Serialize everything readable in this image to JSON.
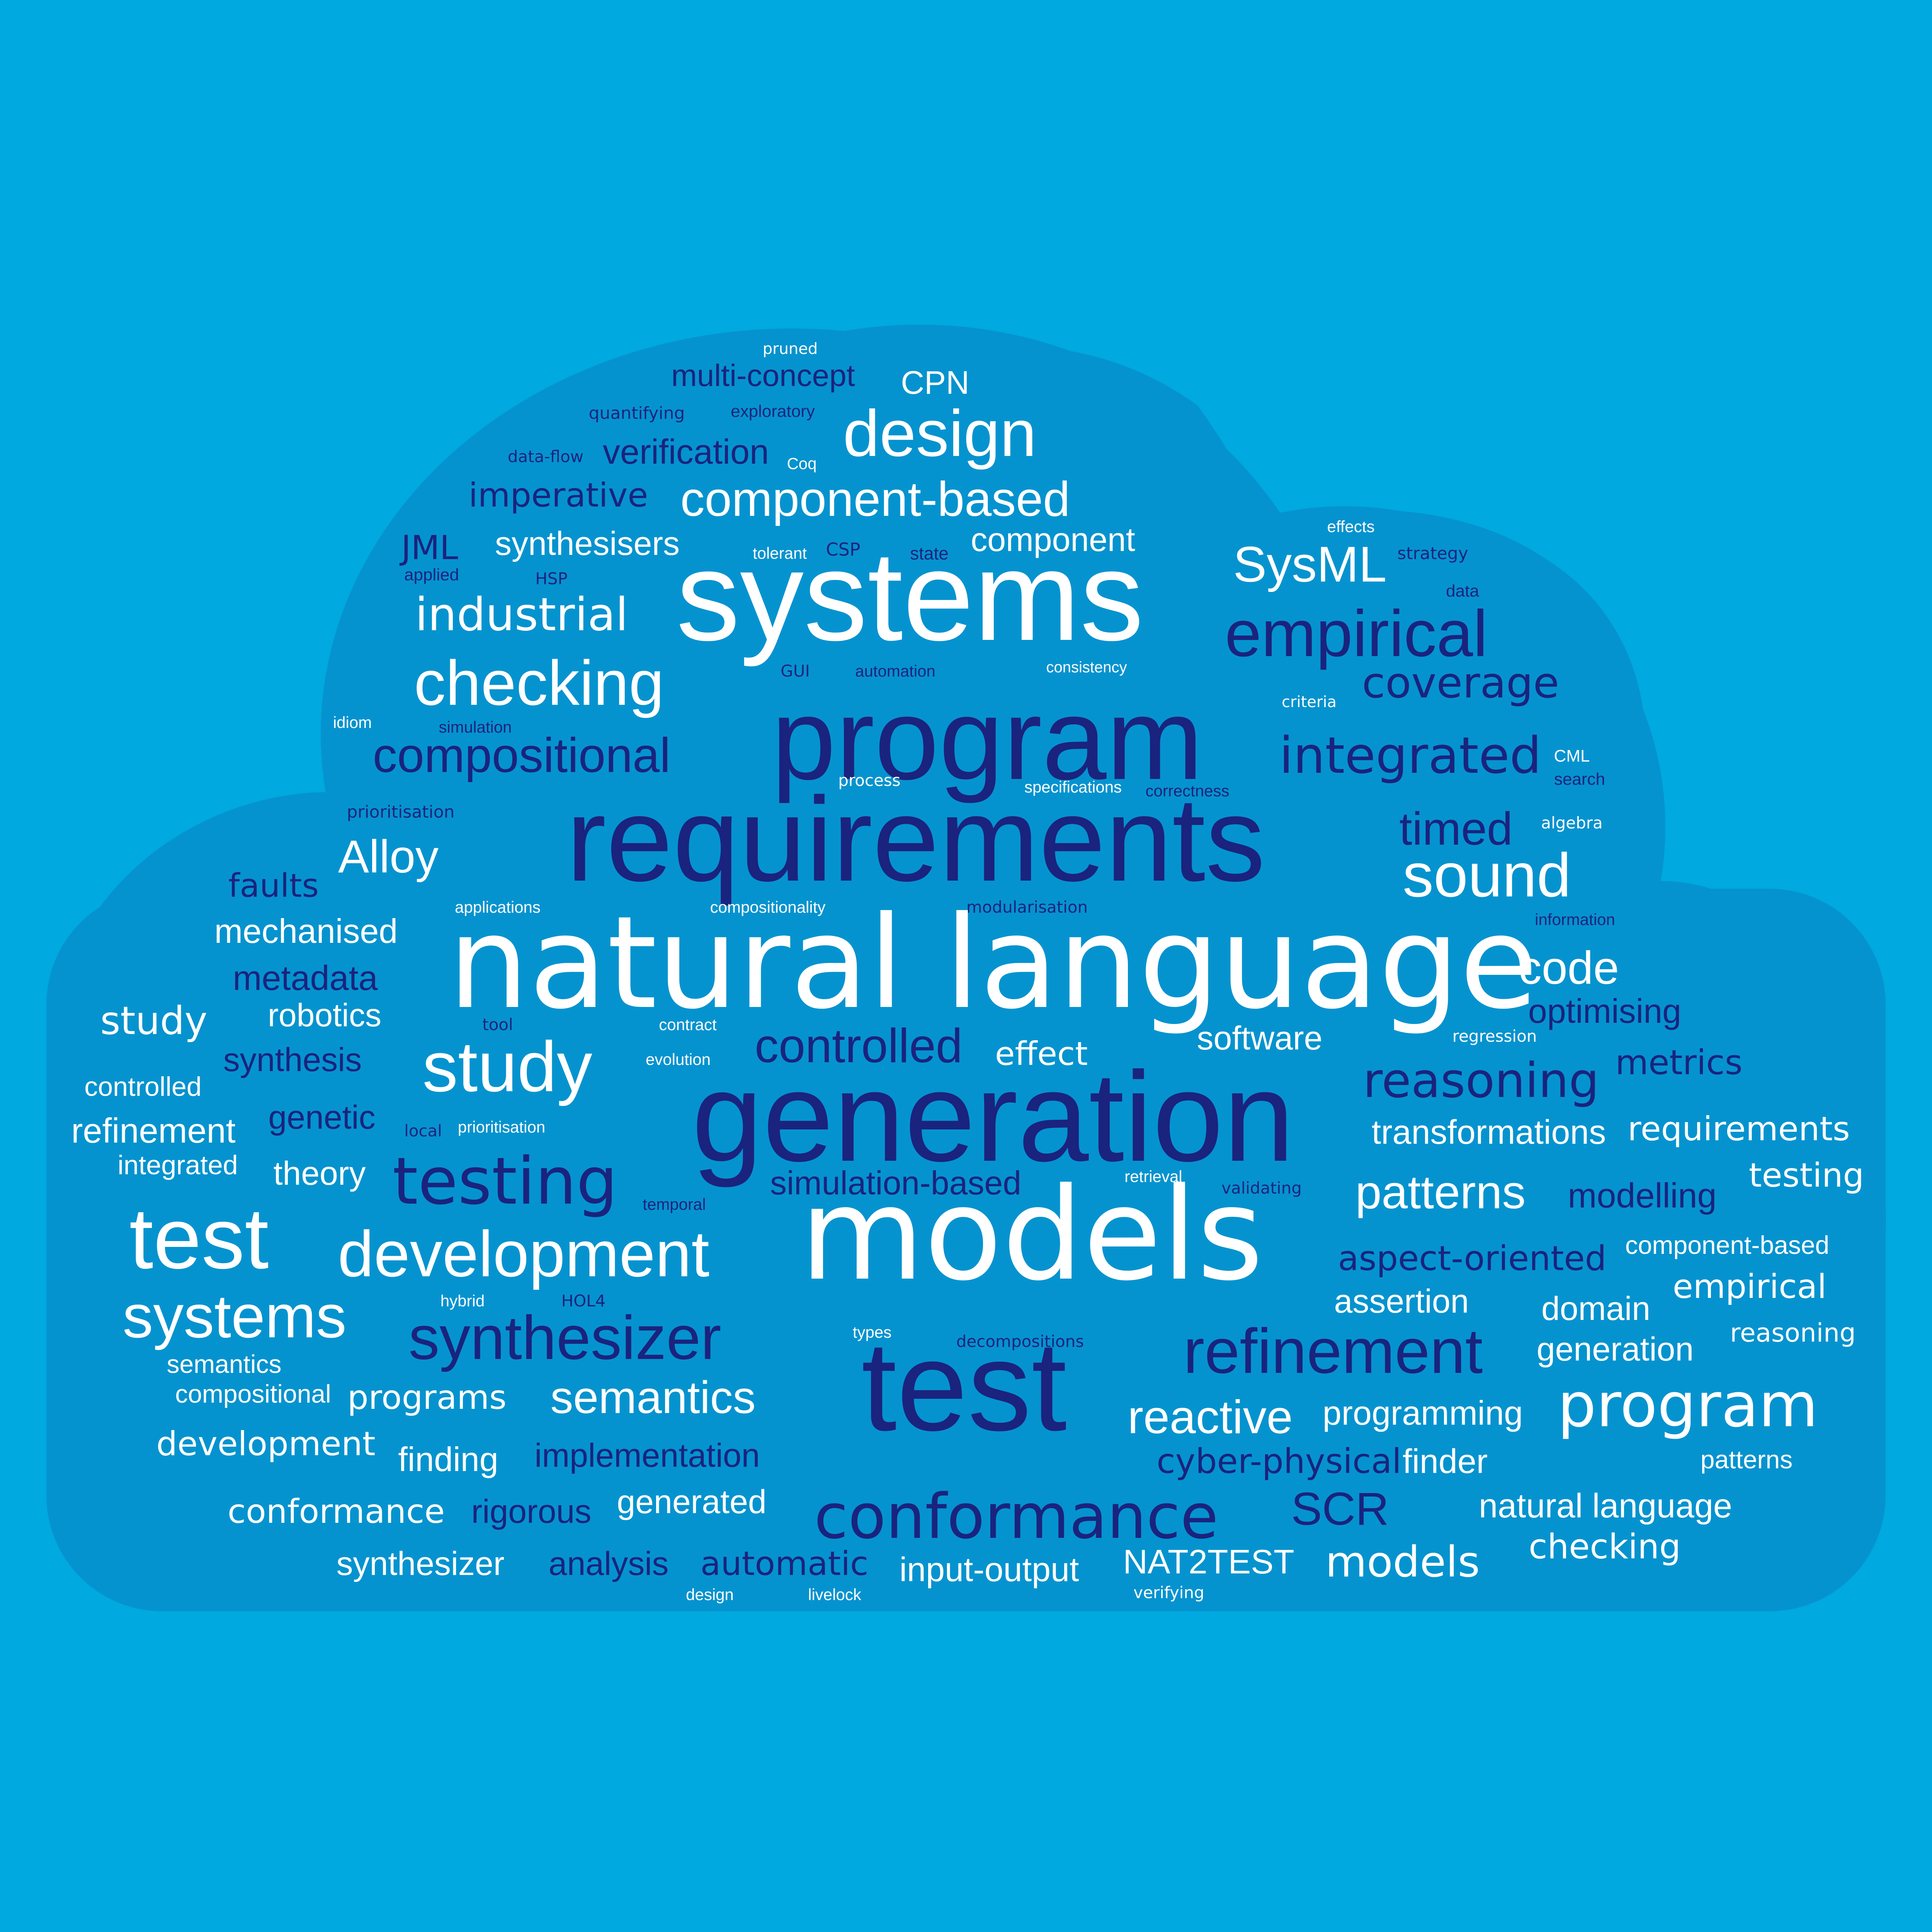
{
  "colors": {
    "background": "#00a9e0",
    "cloud": "#0593cf",
    "white": "#ffffff",
    "navy": "#1a237e"
  },
  "words": [
    {
      "text": "pruned",
      "tone": "white"
    },
    {
      "text": "multi-concept",
      "tone": "navy"
    },
    {
      "text": "CPN",
      "tone": "white"
    },
    {
      "text": "quantifying",
      "tone": "navy"
    },
    {
      "text": "exploratory",
      "tone": "navy"
    },
    {
      "text": "design",
      "tone": "white"
    },
    {
      "text": "data-flow",
      "tone": "navy"
    },
    {
      "text": "verification",
      "tone": "navy"
    },
    {
      "text": "Coq",
      "tone": "white"
    },
    {
      "text": "imperative",
      "tone": "navy"
    },
    {
      "text": "component-based",
      "tone": "white"
    },
    {
      "text": "effects",
      "tone": "white"
    },
    {
      "text": "JML",
      "tone": "navy"
    },
    {
      "text": "synthesisers",
      "tone": "white"
    },
    {
      "text": "tolerant",
      "tone": "white"
    },
    {
      "text": "CSP",
      "tone": "navy"
    },
    {
      "text": "state",
      "tone": "navy"
    },
    {
      "text": "component",
      "tone": "white"
    },
    {
      "text": "strategy",
      "tone": "navy"
    },
    {
      "text": "SysML",
      "tone": "white"
    },
    {
      "text": "applied",
      "tone": "navy"
    },
    {
      "text": "HSP",
      "tone": "navy"
    },
    {
      "text": "data",
      "tone": "navy"
    },
    {
      "text": "systems",
      "tone": "white"
    },
    {
      "text": "industrial",
      "tone": "white"
    },
    {
      "text": "empirical",
      "tone": "navy"
    },
    {
      "text": "checking",
      "tone": "white"
    },
    {
      "text": "GUI",
      "tone": "navy"
    },
    {
      "text": "automation",
      "tone": "navy"
    },
    {
      "text": "consistency",
      "tone": "white"
    },
    {
      "text": "coverage",
      "tone": "navy"
    },
    {
      "text": "idiom",
      "tone": "white"
    },
    {
      "text": "simulation",
      "tone": "navy"
    },
    {
      "text": "criteria",
      "tone": "white"
    },
    {
      "text": "program",
      "tone": "navy"
    },
    {
      "text": "compositional",
      "tone": "navy"
    },
    {
      "text": "integrated",
      "tone": "navy"
    },
    {
      "text": "CML",
      "tone": "white"
    },
    {
      "text": "search",
      "tone": "navy"
    },
    {
      "text": "process",
      "tone": "white"
    },
    {
      "text": "specifications",
      "tone": "white"
    },
    {
      "text": "correctness",
      "tone": "navy"
    },
    {
      "text": "prioritisation",
      "tone": "navy"
    },
    {
      "text": "requirements",
      "tone": "navy"
    },
    {
      "text": "timed",
      "tone": "navy"
    },
    {
      "text": "algebra",
      "tone": "white"
    },
    {
      "text": "Alloy",
      "tone": "white"
    },
    {
      "text": "sound",
      "tone": "white"
    },
    {
      "text": "faults",
      "tone": "navy"
    },
    {
      "text": "applications",
      "tone": "white"
    },
    {
      "text": "compositionality",
      "tone": "white"
    },
    {
      "text": "modularisation",
      "tone": "navy"
    },
    {
      "text": "information",
      "tone": "navy"
    },
    {
      "text": "mechanised",
      "tone": "white"
    },
    {
      "text": "natural language",
      "tone": "white"
    },
    {
      "text": "code",
      "tone": "white"
    },
    {
      "text": "metadata",
      "tone": "navy"
    },
    {
      "text": "study",
      "tone": "white"
    },
    {
      "text": "robotics",
      "tone": "white"
    },
    {
      "text": "optimising",
      "tone": "navy"
    },
    {
      "text": "tool",
      "tone": "navy"
    },
    {
      "text": "contract",
      "tone": "white"
    },
    {
      "text": "software",
      "tone": "white"
    },
    {
      "text": "regression",
      "tone": "white"
    },
    {
      "text": "study",
      "tone": "white"
    },
    {
      "text": "controlled",
      "tone": "navy"
    },
    {
      "text": "effect",
      "tone": "white"
    },
    {
      "text": "synthesis",
      "tone": "navy"
    },
    {
      "text": "evolution",
      "tone": "white"
    },
    {
      "text": "metrics",
      "tone": "navy"
    },
    {
      "text": "controlled",
      "tone": "white"
    },
    {
      "text": "generation",
      "tone": "navy"
    },
    {
      "text": "reasoning",
      "tone": "navy"
    },
    {
      "text": "refinement",
      "tone": "white"
    },
    {
      "text": "genetic",
      "tone": "navy"
    },
    {
      "text": "local",
      "tone": "navy"
    },
    {
      "text": "prioritisation",
      "tone": "white"
    },
    {
      "text": "transformations",
      "tone": "white"
    },
    {
      "text": "requirements",
      "tone": "white"
    },
    {
      "text": "integrated",
      "tone": "white"
    },
    {
      "text": "theory",
      "tone": "white"
    },
    {
      "text": "testing",
      "tone": "navy"
    },
    {
      "text": "simulation-based",
      "tone": "navy"
    },
    {
      "text": "retrieval",
      "tone": "white"
    },
    {
      "text": "validating",
      "tone": "navy"
    },
    {
      "text": "patterns",
      "tone": "white"
    },
    {
      "text": "modelling",
      "tone": "navy"
    },
    {
      "text": "testing",
      "tone": "white"
    },
    {
      "text": "temporal",
      "tone": "navy"
    },
    {
      "text": "test",
      "tone": "white"
    },
    {
      "text": "models",
      "tone": "white"
    },
    {
      "text": "development",
      "tone": "white"
    },
    {
      "text": "component-based",
      "tone": "white"
    },
    {
      "text": "aspect-oriented",
      "tone": "navy"
    },
    {
      "text": "systems",
      "tone": "white"
    },
    {
      "text": "hybrid",
      "tone": "white"
    },
    {
      "text": "HOL4",
      "tone": "navy"
    },
    {
      "text": "assertion",
      "tone": "white"
    },
    {
      "text": "domain",
      "tone": "white"
    },
    {
      "text": "empirical",
      "tone": "white"
    },
    {
      "text": "synthesizer",
      "tone": "navy"
    },
    {
      "text": "types",
      "tone": "white"
    },
    {
      "text": "decompositions",
      "tone": "navy"
    },
    {
      "text": "refinement",
      "tone": "navy"
    },
    {
      "text": "generation",
      "tone": "white"
    },
    {
      "text": "reasoning",
      "tone": "white"
    },
    {
      "text": "semantics",
      "tone": "white"
    },
    {
      "text": "compositional",
      "tone": "white"
    },
    {
      "text": "programs",
      "tone": "white"
    },
    {
      "text": "semantics",
      "tone": "white"
    },
    {
      "text": "test",
      "tone": "navy"
    },
    {
      "text": "program",
      "tone": "white"
    },
    {
      "text": "reactive",
      "tone": "white"
    },
    {
      "text": "programming",
      "tone": "white"
    },
    {
      "text": "development",
      "tone": "white"
    },
    {
      "text": "finding",
      "tone": "white"
    },
    {
      "text": "implementation",
      "tone": "navy"
    },
    {
      "text": "cyber-physical",
      "tone": "navy"
    },
    {
      "text": "finder",
      "tone": "white"
    },
    {
      "text": "patterns",
      "tone": "white"
    },
    {
      "text": "conformance",
      "tone": "white"
    },
    {
      "text": "rigorous",
      "tone": "navy"
    },
    {
      "text": "generated",
      "tone": "white"
    },
    {
      "text": "conformance",
      "tone": "navy"
    },
    {
      "text": "SCR",
      "tone": "navy"
    },
    {
      "text": "natural language",
      "tone": "white"
    },
    {
      "text": "checking",
      "tone": "white"
    },
    {
      "text": "synthesizer",
      "tone": "white"
    },
    {
      "text": "analysis",
      "tone": "navy"
    },
    {
      "text": "automatic",
      "tone": "navy"
    },
    {
      "text": "input-output",
      "tone": "white"
    },
    {
      "text": "NAT2TEST",
      "tone": "white"
    },
    {
      "text": "models",
      "tone": "white"
    },
    {
      "text": "design",
      "tone": "white"
    },
    {
      "text": "livelock",
      "tone": "white"
    },
    {
      "text": "verifying",
      "tone": "white"
    }
  ]
}
